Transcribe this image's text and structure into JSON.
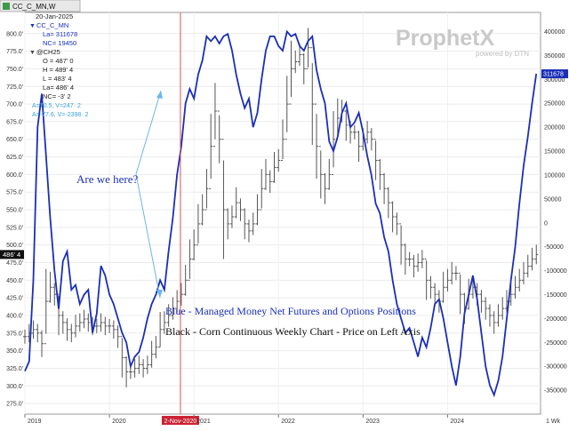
{
  "window": {
    "tab_label": "CC_C_MN,W"
  },
  "info_panel": {
    "date": "20-Jan-2025",
    "series1_symbol": "CC_C_MN",
    "series1_last": "La= 311678",
    "series1_nc": "NC= 19450",
    "series2_symbol": "@CH25",
    "open": "O = 487' 0",
    "high": "H = 489' 4",
    "low": "L = 483' 4",
    "last": "La= 486' 4",
    "nc": "NC= -3' 2",
    "cursor_a": "A=70.5, V=247· 2",
    "cursor_b": "A=-77.6, V=-2398· 2"
  },
  "watermark": {
    "brand": "ProphetX",
    "sub": "powered by DTN"
  },
  "annotations": {
    "question": "Are we here?",
    "legend_blue": "Blue - Managed Money Net Futures and Options Positions",
    "legend_black": "Black - Corn Continuous Weekly Chart - Price on Left Axis",
    "marker_date": "2-Nov-2020",
    "corner_label": "1 Wk"
  },
  "colors": {
    "blue_series": "#1a2fb8",
    "price_bars": "#555555",
    "marker": "#e05050",
    "highlight_tag": "#cc2233"
  },
  "chart_data": {
    "type": "line",
    "x_range": [
      2019.0,
      2025.1
    ],
    "x_ticks": [
      "2019",
      "2020",
      "2-Nov-2020",
      "2021",
      "2022",
      "2023",
      "2024"
    ],
    "x_tick_values": [
      2019.0,
      2020.0,
      2020.84,
      2021.0,
      2022.0,
      2023.0,
      2024.0
    ],
    "left_axis": {
      "range": [
        260,
        830
      ],
      "ticks": [
        "275.0'",
        "300.0'",
        "325.0'",
        "350.0'",
        "375.0'",
        "400.0'",
        "425.0'",
        "450.0'",
        "475.0'",
        "500.0'",
        "525.0'",
        "550.0'",
        "575.0'",
        "600.0'",
        "625.0'",
        "650.0'",
        "675.0'",
        "700.0'",
        "725.0'",
        "750.0'",
        "775.0'",
        "800.0'"
      ],
      "tick_values": [
        275,
        300,
        325,
        350,
        375,
        400,
        425,
        450,
        475,
        500,
        525,
        550,
        575,
        600,
        625,
        650,
        675,
        700,
        725,
        750,
        775,
        800
      ],
      "last_label": "486' 4",
      "last_value": 486.5
    },
    "right_axis": {
      "range": [
        -400000,
        440000
      ],
      "ticks": [
        "400000",
        "350000",
        "300000",
        "250000",
        "200000",
        "150000",
        "100000",
        "50000",
        "0",
        "-50000",
        "-100000",
        "-150000",
        "-200000",
        "-250000",
        "-300000",
        "-350000"
      ],
      "tick_values": [
        400000,
        350000,
        300000,
        250000,
        200000,
        150000,
        100000,
        50000,
        0,
        -50000,
        -100000,
        -150000,
        -200000,
        -250000,
        -300000,
        -350000
      ],
      "last_label": "311678",
      "last_value": 311678
    },
    "series": [
      {
        "name": "Blue - Managed Money Net Futures and Options Positions",
        "axis": "right",
        "x": [
          2019.0,
          2019.05,
          2019.1,
          2019.15,
          2019.2,
          2019.25,
          2019.3,
          2019.35,
          2019.4,
          2019.45,
          2019.5,
          2019.55,
          2019.6,
          2019.65,
          2019.7,
          2019.75,
          2019.8,
          2019.85,
          2019.9,
          2019.95,
          2020.0,
          2020.05,
          2020.1,
          2020.15,
          2020.2,
          2020.25,
          2020.3,
          2020.35,
          2020.4,
          2020.45,
          2020.5,
          2020.55,
          2020.6,
          2020.65,
          2020.7,
          2020.75,
          2020.8,
          2020.85,
          2020.9,
          2020.95,
          2021.0,
          2021.05,
          2021.1,
          2021.15,
          2021.2,
          2021.25,
          2021.3,
          2021.35,
          2021.4,
          2021.45,
          2021.5,
          2021.55,
          2021.6,
          2021.65,
          2021.7,
          2021.75,
          2021.8,
          2021.85,
          2021.9,
          2021.95,
          2022.0,
          2022.05,
          2022.1,
          2022.15,
          2022.2,
          2022.25,
          2022.3,
          2022.35,
          2022.4,
          2022.45,
          2022.5,
          2022.55,
          2022.6,
          2022.65,
          2022.7,
          2022.75,
          2022.8,
          2022.85,
          2022.9,
          2022.95,
          2023.0,
          2023.05,
          2023.1,
          2023.15,
          2023.2,
          2023.25,
          2023.3,
          2023.35,
          2023.4,
          2023.45,
          2023.5,
          2023.55,
          2023.6,
          2023.65,
          2023.7,
          2023.75,
          2023.8,
          2023.85,
          2023.9,
          2023.95,
          2024.0,
          2024.05,
          2024.1,
          2024.15,
          2024.2,
          2024.25,
          2024.3,
          2024.35,
          2024.4,
          2024.45,
          2024.5,
          2024.55,
          2024.6,
          2024.65,
          2024.7,
          2024.75,
          2024.8,
          2024.85,
          2024.9,
          2024.95,
          2025.0,
          2025.05
        ],
        "values": [
          -310000,
          -290000,
          -120000,
          200000,
          270000,
          140000,
          10000,
          -100000,
          -180000,
          -80000,
          -60000,
          -140000,
          -130000,
          -170000,
          -150000,
          -140000,
          -230000,
          -190000,
          -90000,
          -110000,
          -150000,
          -170000,
          -200000,
          -230000,
          -250000,
          -300000,
          -280000,
          -270000,
          -240000,
          -200000,
          -170000,
          -150000,
          -120000,
          -140000,
          -60000,
          10000,
          100000,
          160000,
          250000,
          280000,
          260000,
          310000,
          340000,
          390000,
          380000,
          390000,
          375000,
          390000,
          395000,
          360000,
          310000,
          270000,
          240000,
          260000,
          200000,
          230000,
          300000,
          360000,
          390000,
          390000,
          370000,
          360000,
          400000,
          390000,
          395000,
          370000,
          360000,
          380000,
          390000,
          320000,
          280000,
          250000,
          170000,
          150000,
          180000,
          230000,
          250000,
          200000,
          210000,
          230000,
          190000,
          140000,
          100000,
          40000,
          20000,
          -30000,
          -60000,
          -120000,
          -170000,
          -200000,
          -230000,
          -220000,
          -250000,
          -280000,
          -240000,
          -260000,
          -220000,
          -170000,
          -160000,
          -200000,
          -250000,
          -300000,
          -340000,
          -280000,
          -190000,
          -150000,
          -110000,
          -160000,
          -230000,
          -300000,
          -340000,
          -360000,
          -330000,
          -280000,
          -200000,
          -120000,
          -50000,
          40000,
          120000,
          180000,
          250000,
          311678
        ]
      },
      {
        "name": "Black - Corn Continuous Weekly Chart - Price on Left Axis",
        "axis": "left",
        "type": "ohlc",
        "x": [
          2019.0,
          2019.05,
          2019.1,
          2019.15,
          2019.2,
          2019.25,
          2019.3,
          2019.35,
          2019.4,
          2019.45,
          2019.5,
          2019.55,
          2019.6,
          2019.65,
          2019.7,
          2019.75,
          2019.8,
          2019.85,
          2019.9,
          2019.95,
          2020.0,
          2020.05,
          2020.1,
          2020.15,
          2020.2,
          2020.25,
          2020.3,
          2020.35,
          2020.4,
          2020.45,
          2020.5,
          2020.55,
          2020.6,
          2020.65,
          2020.7,
          2020.75,
          2020.8,
          2020.85,
          2020.9,
          2020.95,
          2021.0,
          2021.05,
          2021.1,
          2021.15,
          2021.2,
          2021.25,
          2021.3,
          2021.35,
          2021.4,
          2021.45,
          2021.5,
          2021.55,
          2021.6,
          2021.65,
          2021.7,
          2021.75,
          2021.8,
          2021.85,
          2021.9,
          2021.95,
          2022.0,
          2022.05,
          2022.1,
          2022.15,
          2022.2,
          2022.25,
          2022.3,
          2022.35,
          2022.4,
          2022.45,
          2022.5,
          2022.55,
          2022.6,
          2022.65,
          2022.7,
          2022.75,
          2022.8,
          2022.85,
          2022.9,
          2022.95,
          2023.0,
          2023.05,
          2023.1,
          2023.15,
          2023.2,
          2023.25,
          2023.3,
          2023.35,
          2023.4,
          2023.45,
          2023.5,
          2023.55,
          2023.6,
          2023.65,
          2023.7,
          2023.75,
          2023.8,
          2023.85,
          2023.9,
          2023.95,
          2024.0,
          2024.05,
          2024.1,
          2024.15,
          2024.2,
          2024.25,
          2024.3,
          2024.35,
          2024.4,
          2024.45,
          2024.5,
          2024.55,
          2024.6,
          2024.65,
          2024.7,
          2024.75,
          2024.8,
          2024.85,
          2024.9,
          2024.95,
          2025.0,
          2025.05
        ],
        "values": [
          370,
          375,
          380,
          375,
          360,
          420,
          440,
          430,
          400,
          390,
          380,
          375,
          385,
          390,
          395,
          390,
          385,
          385,
          390,
          385,
          385,
          380,
          370,
          340,
          320,
          320,
          325,
          330,
          325,
          330,
          345,
          355,
          380,
          390,
          400,
          410,
          420,
          430,
          450,
          480,
          500,
          530,
          550,
          580,
          640,
          690,
          650,
          550,
          530,
          540,
          560,
          550,
          530,
          520,
          530,
          550,
          580,
          600,
          590,
          610,
          620,
          650,
          700,
          750,
          760,
          770,
          750,
          780,
          700,
          640,
          600,
          580,
          600,
          650,
          680,
          690,
          670,
          660,
          660,
          640,
          650,
          660,
          650,
          620,
          600,
          580,
          560,
          540,
          530,
          500,
          480,
          480,
          470,
          475,
          480,
          450,
          440,
          430,
          420,
          440,
          450,
          460,
          460,
          430,
          410,
          430,
          440,
          430,
          420,
          410,
          400,
          390,
          400,
          410,
          420,
          430,
          440,
          450,
          460,
          470,
          480,
          486.5
        ]
      }
    ]
  }
}
